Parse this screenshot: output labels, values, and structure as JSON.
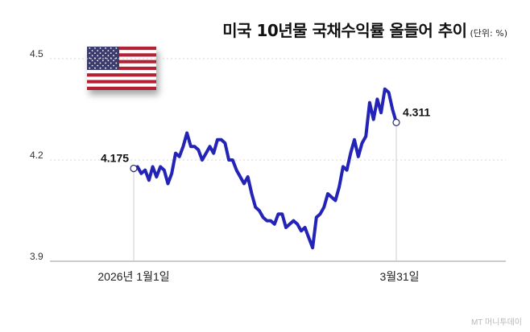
{
  "header": {
    "title": "미국 10년물 국채수익률 올들어 추이",
    "unit": "(단위: %)"
  },
  "watermark": "MT 머니투데이",
  "flag_icon": "us-flag-icon",
  "colors": {
    "line": "#2323b8",
    "axis": "#999999",
    "grid": "#d4d4d4"
  },
  "chart_data": {
    "type": "line",
    "title": "미국 10년물 국채수익률 올들어 추이",
    "unit": "%",
    "ylim": [
      3.9,
      4.5
    ],
    "yticks": [
      "3.9",
      "4.2",
      "4.5"
    ],
    "grid": "horizontal dotted",
    "xtick_labels": [
      "2026년 1월1일",
      "3월31일"
    ],
    "series": [
      {
        "values": [
          4.175,
          4.18,
          4.16,
          4.17,
          4.14,
          4.18,
          4.15,
          4.18,
          4.17,
          4.13,
          4.16,
          4.22,
          4.21,
          4.24,
          4.28,
          4.24,
          4.24,
          4.23,
          4.2,
          4.22,
          4.24,
          4.22,
          4.26,
          4.26,
          4.25,
          4.2,
          4.2,
          4.17,
          4.15,
          4.13,
          4.15,
          4.1,
          4.06,
          4.05,
          4.03,
          4.02,
          4.02,
          4.01,
          4.04,
          4.04,
          4.0,
          4.01,
          4.02,
          4.01,
          3.99,
          4.0,
          3.97,
          3.94,
          4.03,
          4.04,
          4.06,
          4.1,
          4.09,
          4.08,
          4.12,
          4.18,
          4.17,
          4.22,
          4.26,
          4.21,
          4.25,
          4.27,
          4.37,
          4.32,
          4.38,
          4.34,
          4.41,
          4.4,
          4.35,
          4.311
        ]
      }
    ],
    "annotations": [
      {
        "label": "4.175",
        "value": 4.175
      },
      {
        "label": "4.311",
        "value": 4.311
      }
    ]
  }
}
